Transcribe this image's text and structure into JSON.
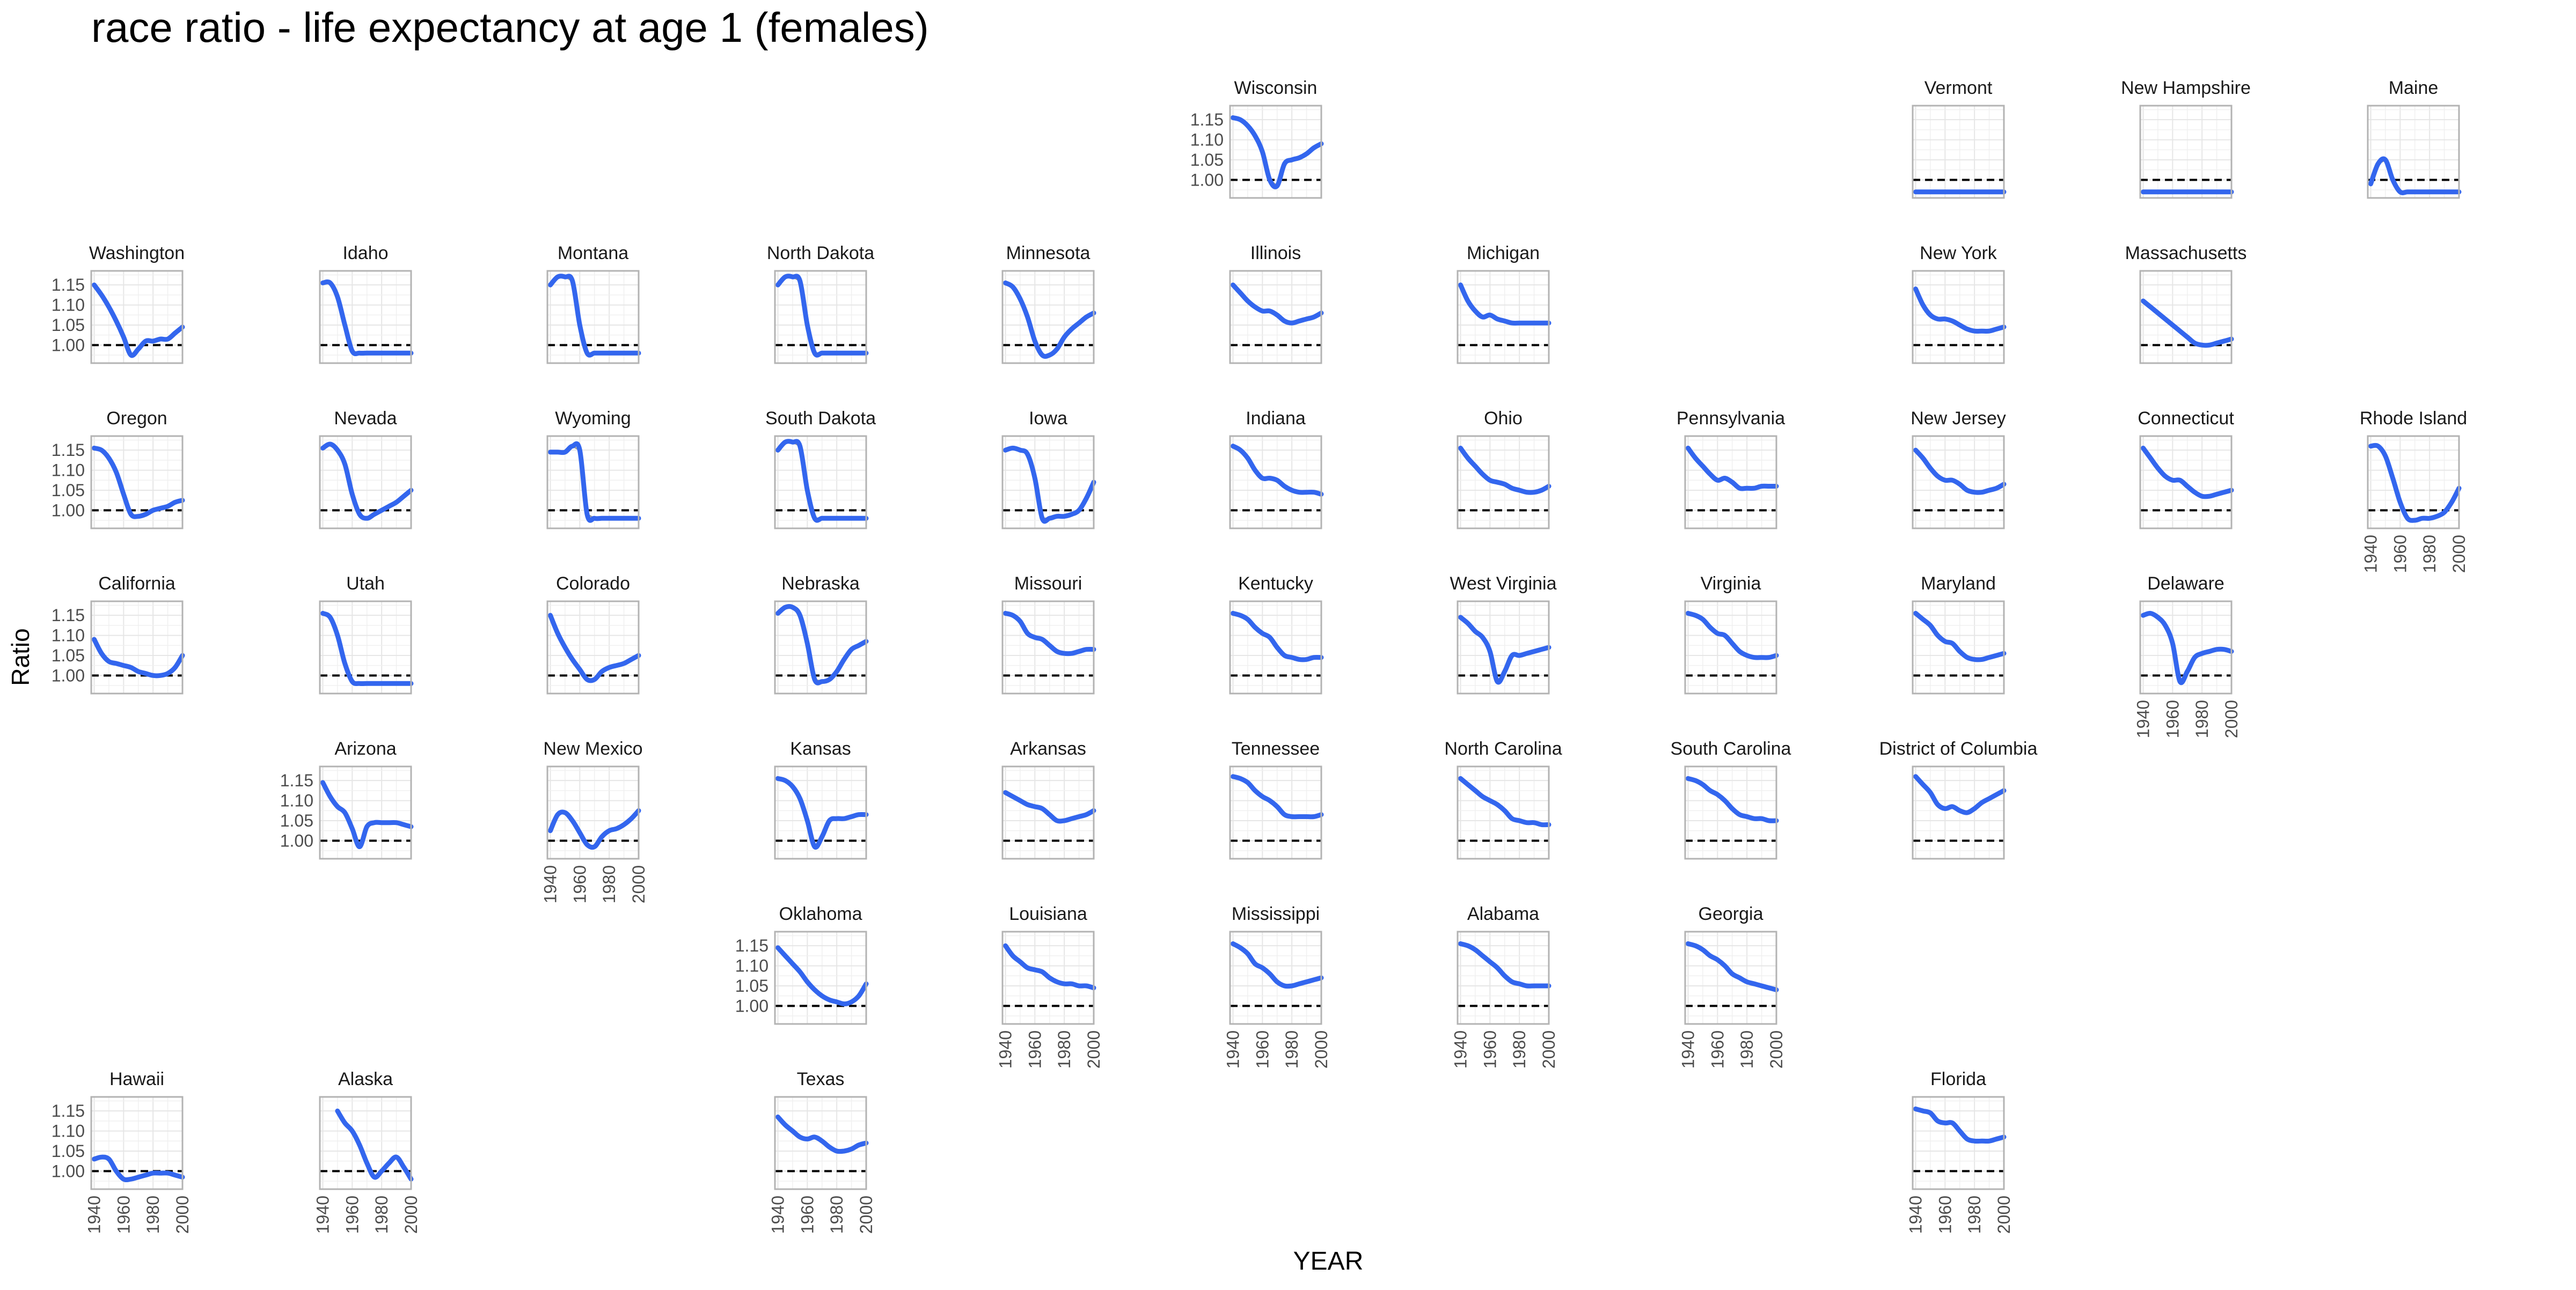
{
  "chart_data": {
    "type": "line",
    "title": "race ratio - life expectancy at age 1 (females)",
    "xlabel": "YEAR",
    "ylabel": "Ratio",
    "xlim": [
      1938,
      2000
    ],
    "ylim": [
      0.955,
      1.185
    ],
    "x_ticks": [
      1940,
      1960,
      1980,
      2000
    ],
    "y_ticks": [
      1.0,
      1.05,
      1.1,
      1.15
    ],
    "y_tick_labels": [
      "1.00",
      "1.05",
      "1.10",
      "1.15"
    ],
    "reference_line": 1.0,
    "grid": true,
    "colors": {
      "smooth": "#3366ee",
      "raw": "#9a9a9a",
      "reference": "#000000",
      "panel_border": "#b3b3b3",
      "grid": "#e6e6e6"
    },
    "x": [
      1940,
      1945,
      1950,
      1955,
      1960,
      1965,
      1970,
      1975,
      1980,
      1985,
      1990,
      1995,
      2000
    ],
    "panels": [
      {
        "name": "Wisconsin",
        "values": [
          1.155,
          1.15,
          1.135,
          1.11,
          1.07,
          1.0,
          0.985,
          1.04,
          1.05,
          1.055,
          1.065,
          1.08,
          1.09
        ]
      },
      {
        "name": "Vermont",
        "values": [
          0.97,
          0.97,
          0.97,
          0.97,
          0.97,
          0.97,
          0.97,
          0.97,
          0.97,
          0.97,
          0.97,
          0.97,
          0.97
        ]
      },
      {
        "name": "New Hampshire",
        "values": [
          0.97,
          0.97,
          0.97,
          0.97,
          0.97,
          0.97,
          0.97,
          0.97,
          0.97,
          0.97,
          0.97,
          0.97,
          0.97
        ]
      },
      {
        "name": "Maine",
        "values": [
          0.99,
          1.04,
          1.05,
          1.0,
          0.97,
          0.97,
          0.97,
          0.97,
          0.97,
          0.97,
          0.97,
          0.97,
          0.97
        ]
      },
      {
        "name": "Washington",
        "values": [
          1.15,
          1.125,
          1.095,
          1.06,
          1.02,
          0.975,
          0.99,
          1.01,
          1.01,
          1.015,
          1.015,
          1.03,
          1.045
        ]
      },
      {
        "name": "Idaho",
        "values": [
          1.155,
          1.155,
          1.12,
          1.05,
          0.985,
          0.98,
          0.98,
          0.98,
          0.98,
          0.98,
          0.98,
          0.98,
          0.98
        ]
      },
      {
        "name": "Montana",
        "values": [
          1.15,
          1.17,
          1.17,
          1.16,
          1.05,
          0.98,
          0.98,
          0.98,
          0.98,
          0.98,
          0.98,
          0.98,
          0.98
        ]
      },
      {
        "name": "North Dakota",
        "values": [
          1.15,
          1.17,
          1.17,
          1.16,
          1.05,
          0.98,
          0.98,
          0.98,
          0.98,
          0.98,
          0.98,
          0.98,
          0.98
        ]
      },
      {
        "name": "Minnesota",
        "values": [
          1.155,
          1.145,
          1.115,
          1.07,
          1.01,
          0.975,
          0.975,
          0.99,
          1.02,
          1.04,
          1.055,
          1.07,
          1.08
        ]
      },
      {
        "name": "Illinois",
        "values": [
          1.15,
          1.13,
          1.11,
          1.095,
          1.085,
          1.085,
          1.075,
          1.06,
          1.055,
          1.06,
          1.065,
          1.07,
          1.08
        ]
      },
      {
        "name": "Michigan",
        "values": [
          1.15,
          1.11,
          1.085,
          1.07,
          1.075,
          1.065,
          1.06,
          1.055,
          1.055,
          1.055,
          1.055,
          1.055,
          1.055
        ]
      },
      {
        "name": "New York",
        "values": [
          1.14,
          1.1,
          1.075,
          1.065,
          1.065,
          1.06,
          1.05,
          1.04,
          1.035,
          1.035,
          1.035,
          1.04,
          1.045
        ]
      },
      {
        "name": "Massachusetts",
        "values": [
          1.11,
          1.095,
          1.08,
          1.065,
          1.05,
          1.035,
          1.02,
          1.005,
          1.0,
          1.0,
          1.005,
          1.01,
          1.015
        ]
      },
      {
        "name": "Oregon",
        "values": [
          1.155,
          1.15,
          1.13,
          1.095,
          1.04,
          0.99,
          0.985,
          0.99,
          1.0,
          1.005,
          1.01,
          1.02,
          1.025
        ]
      },
      {
        "name": "Nevada",
        "values": [
          1.155,
          1.165,
          1.15,
          1.115,
          1.04,
          0.99,
          0.98,
          0.99,
          1.0,
          1.01,
          1.02,
          1.035,
          1.05
        ]
      },
      {
        "name": "Wyoming",
        "values": [
          1.145,
          1.145,
          1.145,
          1.16,
          1.15,
          0.99,
          0.98,
          0.98,
          0.98,
          0.98,
          0.98,
          0.98,
          0.98
        ]
      },
      {
        "name": "South Dakota",
        "values": [
          1.15,
          1.17,
          1.17,
          1.16,
          1.05,
          0.98,
          0.98,
          0.98,
          0.98,
          0.98,
          0.98,
          0.98,
          0.98
        ]
      },
      {
        "name": "Iowa",
        "values": [
          1.15,
          1.155,
          1.15,
          1.14,
          1.08,
          0.98,
          0.98,
          0.985,
          0.985,
          0.99,
          1.0,
          1.03,
          1.07
        ]
      },
      {
        "name": "Indiana",
        "values": [
          1.16,
          1.15,
          1.13,
          1.1,
          1.08,
          1.08,
          1.075,
          1.06,
          1.05,
          1.045,
          1.045,
          1.045,
          1.04
        ]
      },
      {
        "name": "Ohio",
        "values": [
          1.155,
          1.13,
          1.11,
          1.09,
          1.075,
          1.07,
          1.065,
          1.055,
          1.05,
          1.045,
          1.045,
          1.05,
          1.06
        ]
      },
      {
        "name": "Pennsylvania",
        "values": [
          1.155,
          1.13,
          1.11,
          1.09,
          1.075,
          1.08,
          1.07,
          1.055,
          1.055,
          1.055,
          1.06,
          1.06,
          1.06
        ]
      },
      {
        "name": "New Jersey",
        "values": [
          1.15,
          1.13,
          1.105,
          1.085,
          1.075,
          1.075,
          1.065,
          1.05,
          1.045,
          1.045,
          1.05,
          1.055,
          1.065
        ]
      },
      {
        "name": "Connecticut",
        "values": [
          1.155,
          1.13,
          1.105,
          1.085,
          1.075,
          1.075,
          1.06,
          1.045,
          1.035,
          1.035,
          1.04,
          1.045,
          1.05
        ]
      },
      {
        "name": "Rhode Island",
        "values": [
          1.16,
          1.16,
          1.135,
          1.08,
          1.02,
          0.98,
          0.975,
          0.98,
          0.98,
          0.985,
          0.995,
          1.02,
          1.055
        ]
      },
      {
        "name": "California",
        "values": [
          1.09,
          1.055,
          1.035,
          1.03,
          1.025,
          1.02,
          1.01,
          1.005,
          1.0,
          1.0,
          1.005,
          1.02,
          1.05
        ]
      },
      {
        "name": "Utah",
        "values": [
          1.155,
          1.145,
          1.1,
          1.03,
          0.985,
          0.98,
          0.98,
          0.98,
          0.98,
          0.98,
          0.98,
          0.98,
          0.98
        ]
      },
      {
        "name": "Colorado",
        "values": [
          1.15,
          1.105,
          1.07,
          1.04,
          1.015,
          0.99,
          0.99,
          1.01,
          1.02,
          1.025,
          1.03,
          1.04,
          1.05
        ]
      },
      {
        "name": "Nebraska",
        "values": [
          1.155,
          1.17,
          1.17,
          1.15,
          1.08,
          0.99,
          0.985,
          0.99,
          1.01,
          1.04,
          1.065,
          1.075,
          1.085
        ]
      },
      {
        "name": "Missouri",
        "values": [
          1.155,
          1.15,
          1.135,
          1.105,
          1.095,
          1.09,
          1.075,
          1.06,
          1.055,
          1.055,
          1.06,
          1.065,
          1.065
        ]
      },
      {
        "name": "Kentucky",
        "values": [
          1.155,
          1.15,
          1.14,
          1.12,
          1.105,
          1.095,
          1.07,
          1.05,
          1.045,
          1.04,
          1.04,
          1.045,
          1.045
        ]
      },
      {
        "name": "West Virginia",
        "values": [
          1.145,
          1.13,
          1.11,
          1.095,
          1.06,
          0.985,
          1.01,
          1.05,
          1.05,
          1.055,
          1.06,
          1.065,
          1.07
        ]
      },
      {
        "name": "Virginia",
        "values": [
          1.155,
          1.15,
          1.14,
          1.12,
          1.105,
          1.1,
          1.08,
          1.06,
          1.05,
          1.045,
          1.045,
          1.045,
          1.05
        ]
      },
      {
        "name": "Maryland",
        "values": [
          1.155,
          1.14,
          1.125,
          1.1,
          1.085,
          1.08,
          1.06,
          1.045,
          1.04,
          1.04,
          1.045,
          1.05,
          1.055
        ]
      },
      {
        "name": "Delaware",
        "values": [
          1.15,
          1.155,
          1.145,
          1.125,
          1.08,
          0.985,
          1.01,
          1.045,
          1.055,
          1.06,
          1.065,
          1.065,
          1.06
        ]
      },
      {
        "name": "Arizona",
        "values": [
          1.145,
          1.11,
          1.085,
          1.07,
          1.03,
          0.985,
          1.035,
          1.045,
          1.045,
          1.045,
          1.045,
          1.04,
          1.035
        ]
      },
      {
        "name": "New Mexico",
        "values": [
          1.025,
          1.065,
          1.07,
          1.05,
          1.02,
          0.99,
          0.985,
          1.01,
          1.025,
          1.03,
          1.04,
          1.055,
          1.075
        ]
      },
      {
        "name": "Kansas",
        "values": [
          1.155,
          1.15,
          1.135,
          1.105,
          1.05,
          0.985,
          1.01,
          1.05,
          1.055,
          1.055,
          1.06,
          1.065,
          1.065
        ]
      },
      {
        "name": "Arkansas",
        "values": [
          1.12,
          1.11,
          1.1,
          1.09,
          1.085,
          1.08,
          1.065,
          1.05,
          1.05,
          1.055,
          1.06,
          1.065,
          1.075
        ]
      },
      {
        "name": "Tennessee",
        "values": [
          1.16,
          1.155,
          1.145,
          1.125,
          1.11,
          1.1,
          1.085,
          1.065,
          1.06,
          1.06,
          1.06,
          1.06,
          1.065
        ]
      },
      {
        "name": "North Carolina",
        "values": [
          1.155,
          1.14,
          1.125,
          1.11,
          1.1,
          1.09,
          1.075,
          1.055,
          1.05,
          1.045,
          1.045,
          1.04,
          1.04
        ]
      },
      {
        "name": "South Carolina",
        "values": [
          1.155,
          1.15,
          1.14,
          1.125,
          1.115,
          1.1,
          1.08,
          1.065,
          1.06,
          1.055,
          1.055,
          1.05,
          1.05
        ]
      },
      {
        "name": "District of Columbia",
        "values": [
          1.16,
          1.14,
          1.12,
          1.09,
          1.08,
          1.085,
          1.075,
          1.07,
          1.08,
          1.095,
          1.105,
          1.115,
          1.125
        ]
      },
      {
        "name": "Oklahoma",
        "values": [
          1.145,
          1.125,
          1.105,
          1.085,
          1.06,
          1.04,
          1.025,
          1.015,
          1.01,
          1.005,
          1.01,
          1.025,
          1.055
        ]
      },
      {
        "name": "Louisiana",
        "values": [
          1.15,
          1.125,
          1.11,
          1.095,
          1.09,
          1.085,
          1.07,
          1.06,
          1.055,
          1.055,
          1.05,
          1.05,
          1.045
        ]
      },
      {
        "name": "Mississippi",
        "values": [
          1.155,
          1.145,
          1.13,
          1.105,
          1.095,
          1.08,
          1.06,
          1.05,
          1.05,
          1.055,
          1.06,
          1.065,
          1.07
        ]
      },
      {
        "name": "Alabama",
        "values": [
          1.155,
          1.15,
          1.14,
          1.125,
          1.11,
          1.095,
          1.075,
          1.06,
          1.055,
          1.05,
          1.05,
          1.05,
          1.05
        ]
      },
      {
        "name": "Georgia",
        "values": [
          1.155,
          1.15,
          1.14,
          1.125,
          1.115,
          1.1,
          1.08,
          1.07,
          1.06,
          1.055,
          1.05,
          1.045,
          1.04
        ]
      },
      {
        "name": "Hawaii",
        "values": [
          1.03,
          1.035,
          1.03,
          1.0,
          0.98,
          0.98,
          0.985,
          0.99,
          0.995,
          0.995,
          0.995,
          0.99,
          0.985
        ]
      },
      {
        "name": "Alaska",
        "values": [
          null,
          null,
          1.15,
          1.12,
          1.1,
          1.065,
          1.02,
          0.985,
          1.0,
          1.02,
          1.035,
          1.01,
          0.98
        ]
      },
      {
        "name": "Texas",
        "values": [
          1.135,
          1.115,
          1.1,
          1.085,
          1.08,
          1.085,
          1.075,
          1.06,
          1.05,
          1.05,
          1.055,
          1.065,
          1.07
        ]
      },
      {
        "name": "Florida",
        "values": [
          1.155,
          1.15,
          1.145,
          1.125,
          1.12,
          1.12,
          1.1,
          1.08,
          1.075,
          1.075,
          1.075,
          1.08,
          1.085
        ]
      }
    ]
  }
}
